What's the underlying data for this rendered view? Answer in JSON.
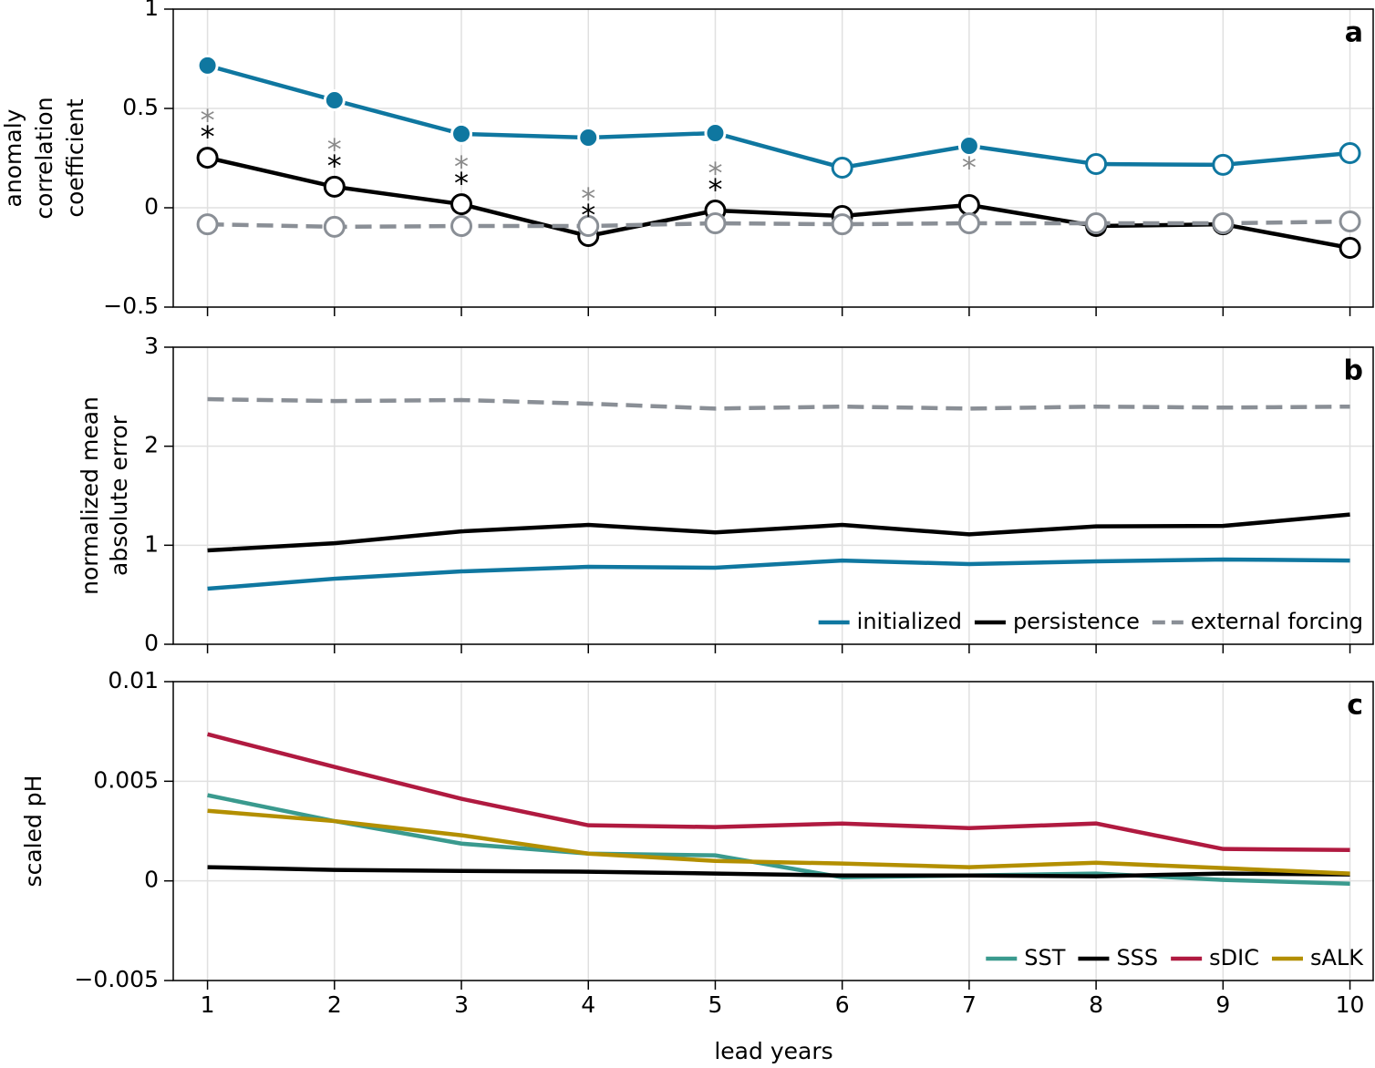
{
  "chart_data": [
    {
      "type": "line",
      "panel_label": "a",
      "ylabel": [
        "anomaly",
        "correlation",
        "coefficient"
      ],
      "x": [
        1,
        2,
        3,
        4,
        5,
        6,
        7,
        8,
        9,
        10
      ],
      "xlim": [
        0.73,
        10.19
      ],
      "xticks": [
        1,
        2,
        3,
        4,
        5,
        6,
        7,
        8,
        9,
        10
      ],
      "xtick_labels": false,
      "ylim": [
        -0.5,
        1
      ],
      "yticks": [
        {
          "value": -0.5,
          "label": "−0.5"
        },
        0,
        0.5,
        1
      ],
      "grid": true,
      "series": [
        {
          "name": "persistence",
          "color": "#000000",
          "dashed": false,
          "marker": true,
          "values": [
            0.252,
            0.106,
            0.018,
            -0.142,
            -0.014,
            -0.041,
            0.014,
            -0.092,
            -0.083,
            -0.202
          ],
          "filled": [
            false,
            false,
            false,
            false,
            false,
            false,
            false,
            false,
            false,
            false
          ]
        },
        {
          "name": "external forcing",
          "color": "#8a8f96",
          "dashed": true,
          "marker": true,
          "values": [
            -0.083,
            -0.096,
            -0.092,
            -0.092,
            -0.078,
            -0.083,
            -0.078,
            -0.078,
            -0.078,
            -0.069
          ],
          "filled": [
            false,
            false,
            false,
            false,
            false,
            false,
            false,
            false,
            false,
            false
          ]
        },
        {
          "name": "initialized",
          "color": "#0f77a0",
          "dashed": false,
          "marker": true,
          "values": [
            0.716,
            0.541,
            0.372,
            0.353,
            0.376,
            0.202,
            0.312,
            0.22,
            0.216,
            0.275
          ],
          "filled": [
            true,
            true,
            true,
            true,
            true,
            false,
            true,
            false,
            false,
            false
          ]
        }
      ],
      "stars": [
        {
          "label": "*",
          "color": "#000000",
          "x": [
            1,
            2,
            3,
            4,
            5
          ]
        },
        {
          "label": "*",
          "color": "#8a8a8a",
          "x": [
            1,
            2,
            3,
            4,
            5,
            7
          ]
        }
      ]
    },
    {
      "type": "line",
      "panel_label": "b",
      "ylabel": [
        "normalized mean",
        "absolute error"
      ],
      "x": [
        1,
        2,
        3,
        4,
        5,
        6,
        7,
        8,
        9,
        10
      ],
      "xlim": [
        0.73,
        10.19
      ],
      "xticks": [
        1,
        2,
        3,
        4,
        5,
        6,
        7,
        8,
        9,
        10
      ],
      "xtick_labels": false,
      "ylim": [
        0,
        3
      ],
      "yticks": [
        0,
        1,
        2,
        3
      ],
      "grid": true,
      "legend": "lower right",
      "series": [
        {
          "name": "initialized",
          "color": "#0f77a0",
          "dashed": false,
          "values": [
            0.561,
            0.662,
            0.736,
            0.782,
            0.773,
            0.846,
            0.81,
            0.837,
            0.856,
            0.846
          ]
        },
        {
          "name": "persistence",
          "color": "#000000",
          "dashed": false,
          "values": [
            0.948,
            1.02,
            1.14,
            1.205,
            1.13,
            1.205,
            1.11,
            1.19,
            1.195,
            1.31
          ]
        },
        {
          "name": "external forcing",
          "color": "#8a8f96",
          "dashed": true,
          "values": [
            2.475,
            2.456,
            2.466,
            2.43,
            2.38,
            2.4,
            2.38,
            2.4,
            2.39,
            2.4
          ]
        }
      ]
    },
    {
      "type": "line",
      "panel_label": "c",
      "ylabel": [
        "scaled pH"
      ],
      "xlabel": "lead years",
      "x": [
        1,
        2,
        3,
        4,
        5,
        6,
        7,
        8,
        9,
        10
      ],
      "xlim": [
        0.73,
        10.19
      ],
      "xticks": [
        1,
        2,
        3,
        4,
        5,
        6,
        7,
        8,
        9,
        10
      ],
      "xtick_labels": true,
      "ylim": [
        -0.005,
        0.01
      ],
      "yticks": [
        {
          "value": -0.005,
          "label": "−0.005"
        },
        0,
        0.005,
        0.01
      ],
      "grid": true,
      "legend": "lower right",
      "series": [
        {
          "name": "SST",
          "color": "#3a9a8e",
          "dashed": false,
          "values": [
            0.0043,
            0.003,
            0.00187,
            0.00137,
            0.00128,
            0.00018,
            0.00027,
            0.00037,
            5e-05,
            -0.00014
          ]
        },
        {
          "name": "SSS",
          "color": "#000000",
          "dashed": false,
          "values": [
            0.00069,
            0.00055,
            0.0005,
            0.00046,
            0.00037,
            0.00027,
            0.00027,
            0.00023,
            0.00037,
            0.00032
          ]
        },
        {
          "name": "sDIC",
          "color": "#b01a40",
          "dashed": false,
          "values": [
            0.00736,
            0.00572,
            0.00412,
            0.00279,
            0.0027,
            0.00288,
            0.00265,
            0.00288,
            0.0016,
            0.00155
          ]
        },
        {
          "name": "sALK",
          "color": "#b38f00",
          "dashed": false,
          "values": [
            0.00352,
            0.003,
            0.00229,
            0.00137,
            0.001,
            0.00087,
            0.00069,
            0.00091,
            0.00064,
            0.00037
          ]
        }
      ]
    }
  ]
}
